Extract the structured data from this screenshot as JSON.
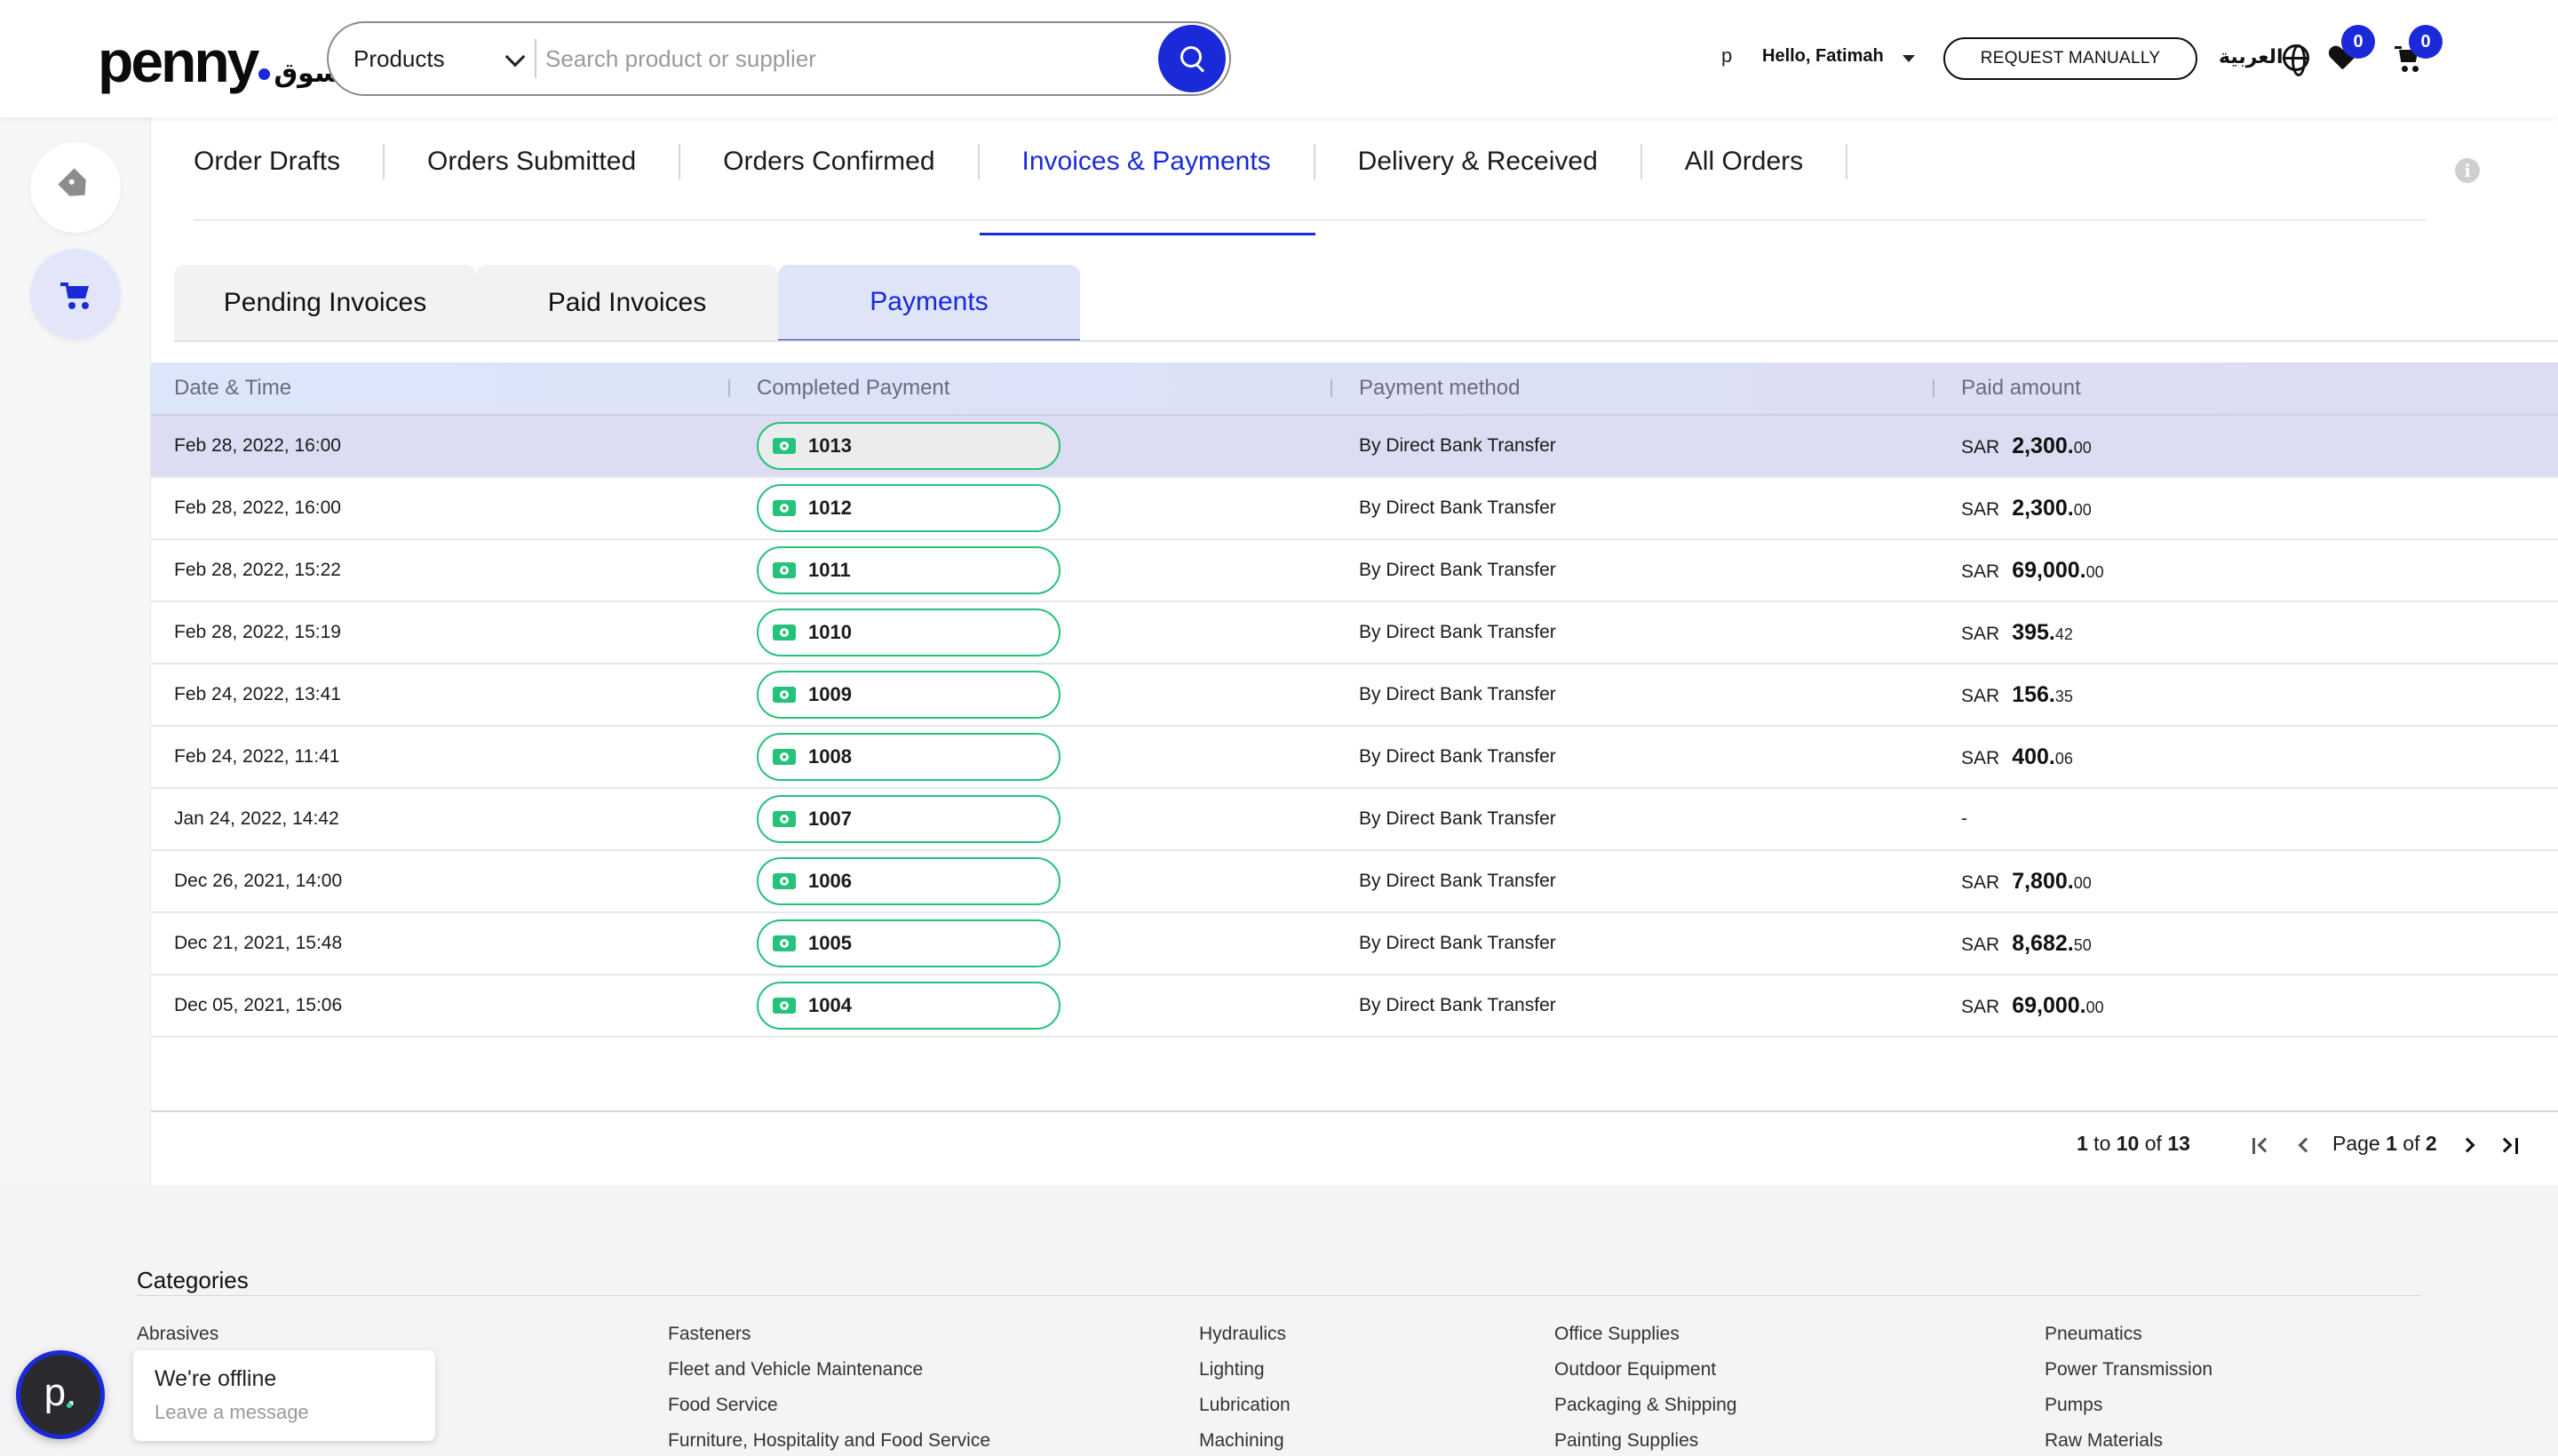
{
  "header": {
    "logo_word": "penny",
    "logo_arabic": "سوق",
    "search_category": "Products",
    "search_placeholder": "Search product or supplier",
    "avatar_letter": "p",
    "greeting": "Hello, Fatimah",
    "request_button": "REQUEST MANUALLY",
    "language": "العربية",
    "wishlist_count": "0",
    "cart_count": "0"
  },
  "sidebar": {
    "items": [
      {
        "icon": "tag-icon"
      },
      {
        "icon": "cart-icon",
        "active": true
      }
    ]
  },
  "tabs": [
    {
      "label": "Order Drafts"
    },
    {
      "label": "Orders Submitted"
    },
    {
      "label": "Orders Confirmed"
    },
    {
      "label": "Invoices & Payments",
      "active": true
    },
    {
      "label": "Delivery & Received"
    },
    {
      "label": "All Orders"
    }
  ],
  "info_icon": "i",
  "subtabs": [
    {
      "label": "Pending Invoices"
    },
    {
      "label": "Paid Invoices"
    },
    {
      "label": "Payments",
      "active": true
    }
  ],
  "table": {
    "columns": [
      "Date & Time",
      "Completed Payment",
      "Payment method",
      "Paid amount"
    ],
    "rows": [
      {
        "date": "Feb 28, 2022, 16:00",
        "payment": "1013",
        "method": "By Direct Bank Transfer",
        "currency": "SAR",
        "amount": "2,300.",
        "decimals": "00",
        "selected": true
      },
      {
        "date": "Feb 28, 2022, 16:00",
        "payment": "1012",
        "method": "By Direct Bank Transfer",
        "currency": "SAR",
        "amount": "2,300.",
        "decimals": "00"
      },
      {
        "date": "Feb 28, 2022, 15:22",
        "payment": "1011",
        "method": "By Direct Bank Transfer",
        "currency": "SAR",
        "amount": "69,000.",
        "decimals": "00"
      },
      {
        "date": "Feb 28, 2022, 15:19",
        "payment": "1010",
        "method": "By Direct Bank Transfer",
        "currency": "SAR",
        "amount": "395.",
        "decimals": "42"
      },
      {
        "date": "Feb 24, 2022, 13:41",
        "payment": "1009",
        "method": "By Direct Bank Transfer",
        "currency": "SAR",
        "amount": "156.",
        "decimals": "35"
      },
      {
        "date": "Feb 24, 2022, 11:41",
        "payment": "1008",
        "method": "By Direct Bank Transfer",
        "currency": "SAR",
        "amount": "400.",
        "decimals": "06"
      },
      {
        "date": "Jan 24, 2022, 14:42",
        "payment": "1007",
        "method": "By Direct Bank Transfer",
        "currency": "",
        "amount": "-",
        "decimals": ""
      },
      {
        "date": "Dec 26, 2021, 14:00",
        "payment": "1006",
        "method": "By Direct Bank Transfer",
        "currency": "SAR",
        "amount": "7,800.",
        "decimals": "00"
      },
      {
        "date": "Dec 21, 2021, 15:48",
        "payment": "1005",
        "method": "By Direct Bank Transfer",
        "currency": "SAR",
        "amount": "8,682.",
        "decimals": "50"
      },
      {
        "date": "Dec 05, 2021, 15:06",
        "payment": "1004",
        "method": "By Direct Bank Transfer",
        "currency": "SAR",
        "amount": "69,000.",
        "decimals": "00"
      }
    ]
  },
  "pagination": {
    "from": "1",
    "to": "10",
    "total": "13",
    "page": "1",
    "pages": "2"
  },
  "footer": {
    "categories_title": "Categories",
    "columns": [
      [
        "Abrasives"
      ],
      [
        "Fasteners",
        "Fleet and Vehicle Maintenance",
        "Food Service",
        "Furniture, Hospitality and Food Service"
      ],
      [
        "Hydraulics",
        "Lighting",
        "Lubrication",
        "Machining"
      ],
      [
        "Office Supplies",
        "Outdoor Equipment",
        "Packaging & Shipping",
        "Painting Supplies"
      ],
      [
        "Pneumatics",
        "Power Transmission",
        "Pumps",
        "Raw Materials"
      ]
    ]
  },
  "chat": {
    "avatar_letter": "p.",
    "status": "We're offline",
    "action": "Leave a message"
  },
  "colors": {
    "accent": "#1a2ad8",
    "payment_green": "#24c27a",
    "selected_row": "#dcdcf2"
  }
}
